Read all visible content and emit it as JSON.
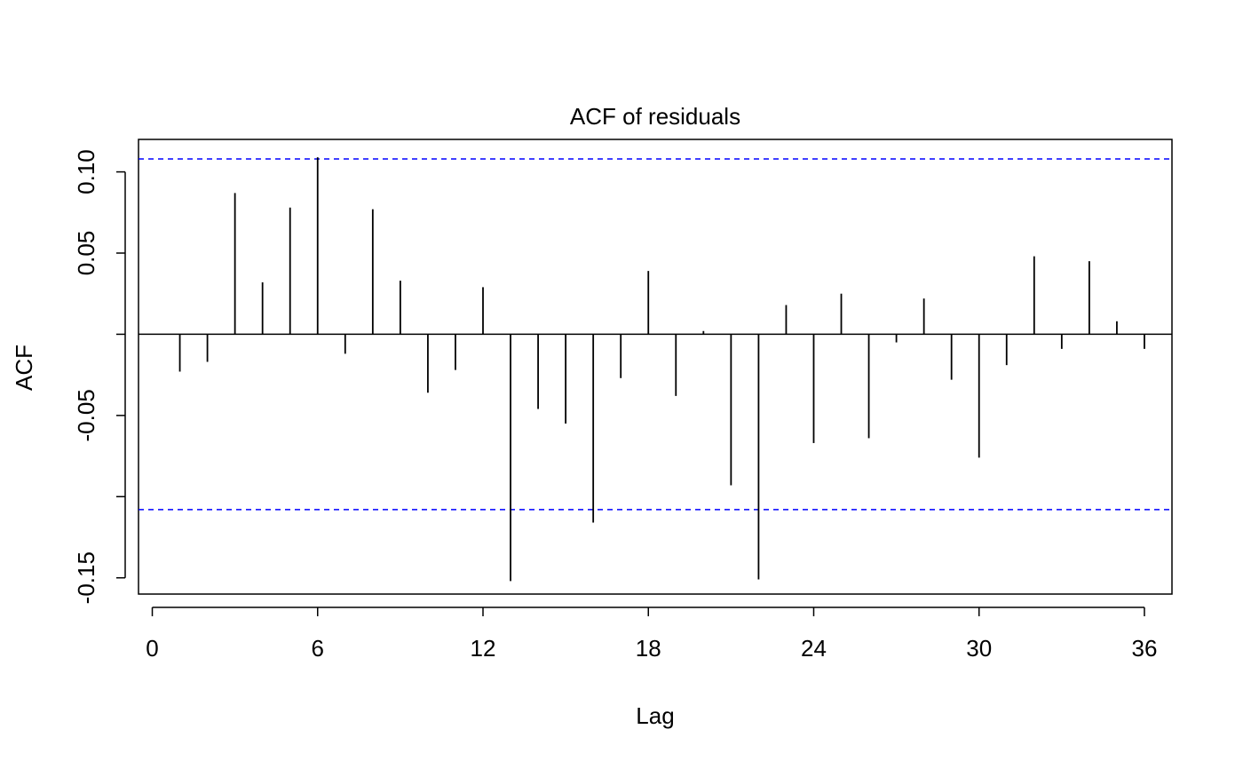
{
  "chart_data": {
    "type": "bar",
    "title": "ACF of residuals",
    "xlabel": "Lag",
    "ylabel": "ACF",
    "xlim": [
      -0.5,
      37
    ],
    "ylim": [
      -0.16,
      0.12
    ],
    "x_ticks": [
      0,
      6,
      12,
      18,
      24,
      30,
      36
    ],
    "x_tick_labels": [
      "0",
      "6",
      "12",
      "18",
      "24",
      "30",
      "36"
    ],
    "y_ticks": [
      -0.15,
      -0.1,
      -0.05,
      0,
      0.05,
      0.1
    ],
    "y_tick_labels": [
      "-0.15",
      "",
      "-0.05",
      "",
      "0.05",
      "0.10"
    ],
    "confidence_bound": 0.108,
    "bound_color": "#0000ff",
    "bar_color": "#000000",
    "lags": [
      1,
      2,
      3,
      4,
      5,
      6,
      7,
      8,
      9,
      10,
      11,
      12,
      13,
      14,
      15,
      16,
      17,
      18,
      19,
      20,
      21,
      22,
      23,
      24,
      25,
      26,
      27,
      28,
      29,
      30,
      31,
      32,
      33,
      34,
      35,
      36
    ],
    "values": [
      -0.023,
      -0.017,
      0.087,
      0.032,
      0.078,
      0.109,
      -0.012,
      0.077,
      0.033,
      -0.036,
      -0.022,
      0.029,
      -0.152,
      -0.046,
      -0.055,
      -0.116,
      -0.027,
      0.039,
      -0.038,
      0.002,
      -0.093,
      -0.151,
      0.018,
      -0.067,
      0.025,
      -0.064,
      -0.005,
      0.022,
      -0.028,
      -0.076,
      -0.019,
      0.048,
      -0.009,
      0.045,
      0.008,
      -0.009
    ],
    "grid": false,
    "legend": "none"
  }
}
